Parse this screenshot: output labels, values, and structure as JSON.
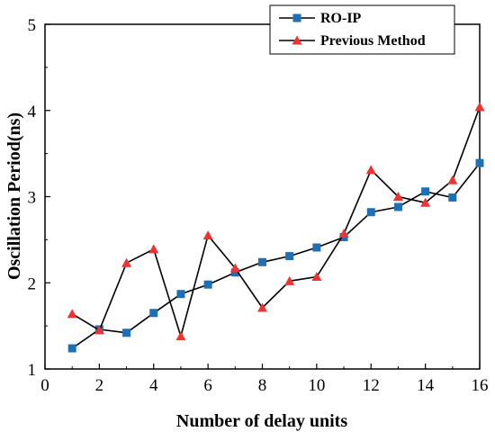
{
  "chart_data": {
    "type": "line",
    "xlabel": "Number of delay units",
    "ylabel": "Oscillation Period(ns)",
    "xlim": [
      0,
      16
    ],
    "ylim": [
      1,
      5
    ],
    "x_ticks": [
      "0",
      "2",
      "4",
      "6",
      "8",
      "10",
      "12",
      "14",
      "16"
    ],
    "y_ticks": [
      "1",
      "2",
      "3",
      "4",
      "5"
    ],
    "grid": false,
    "legend_position": "top-right",
    "x": [
      1,
      2,
      3,
      4,
      5,
      6,
      7,
      8,
      9,
      10,
      11,
      12,
      13,
      14,
      15,
      16
    ],
    "series": [
      {
        "name": "RO-IP",
        "marker": "square",
        "color": "#1f6fb5",
        "values": [
          1.24,
          1.46,
          1.42,
          1.65,
          1.87,
          1.98,
          2.12,
          2.24,
          2.31,
          2.41,
          2.53,
          2.82,
          2.88,
          3.06,
          2.99,
          3.39
        ]
      },
      {
        "name": "Previous Method",
        "marker": "triangle",
        "color": "#ee3333",
        "values": [
          1.64,
          1.45,
          2.23,
          2.39,
          1.38,
          2.55,
          2.17,
          1.71,
          2.02,
          2.07,
          2.57,
          3.31,
          3.0,
          2.93,
          3.19,
          4.04
        ]
      }
    ]
  }
}
